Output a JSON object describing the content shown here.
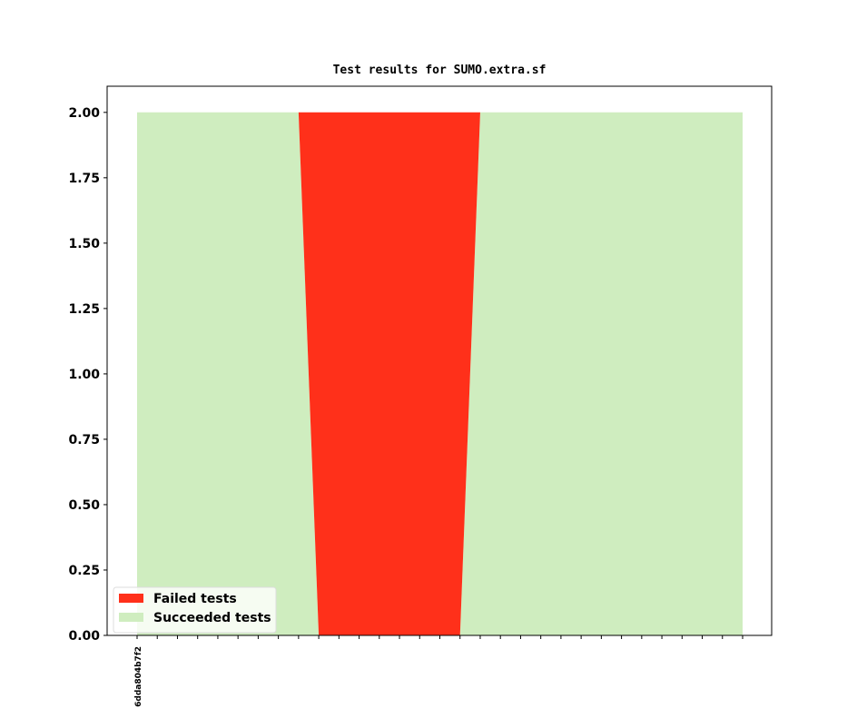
{
  "chart_data": {
    "type": "stacked_area",
    "title": "Test results for SUMO.extra.sf",
    "categories": [
      "6dda804b7f2",
      null,
      null,
      null,
      null,
      null,
      null,
      null,
      null,
      null,
      null,
      null,
      null,
      null,
      null,
      null,
      null,
      null,
      null,
      null,
      null,
      null,
      null,
      null,
      null,
      null,
      null,
      null,
      null,
      null,
      null
    ],
    "series": [
      {
        "name": "Failed tests",
        "color": "#ff301a",
        "values": [
          0,
          0,
          0,
          0,
          0,
          0,
          0,
          0,
          0,
          2,
          2,
          2,
          2,
          2,
          2,
          2,
          2,
          0,
          0,
          0,
          0,
          0,
          0,
          0,
          0,
          0,
          0,
          0,
          0,
          0,
          0
        ]
      },
      {
        "name": "Succeeded tests",
        "color": "#cfedbf",
        "values": [
          2,
          2,
          2,
          2,
          2,
          2,
          2,
          2,
          2,
          0,
          0,
          0,
          0,
          0,
          0,
          0,
          0,
          2,
          2,
          2,
          2,
          2,
          2,
          2,
          2,
          2,
          2,
          2,
          2,
          2,
          2
        ]
      }
    ],
    "ylim": [
      0,
      2.1
    ],
    "yticks": [
      {
        "value": 0,
        "label": "0.00"
      },
      {
        "value": 0.25,
        "label": "0.25"
      },
      {
        "value": 0.5,
        "label": "0.50"
      },
      {
        "value": 0.75,
        "label": "0.75"
      },
      {
        "value": 1,
        "label": "1.00"
      },
      {
        "value": 1.25,
        "label": "1.25"
      },
      {
        "value": 1.5,
        "label": "1.50"
      },
      {
        "value": 1.75,
        "label": "1.75"
      },
      {
        "value": 2,
        "label": "2.00"
      }
    ],
    "legend": "lower left"
  }
}
